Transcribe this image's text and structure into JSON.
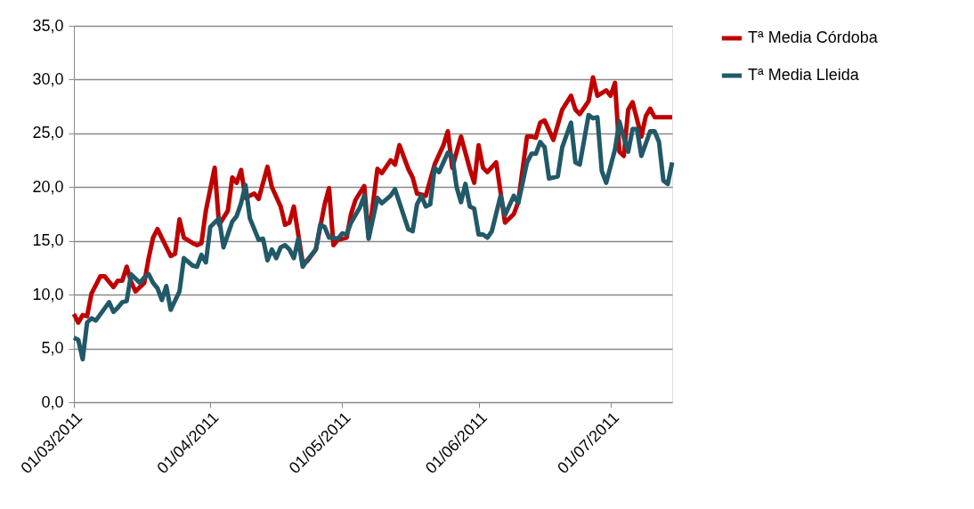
{
  "chart_data": {
    "type": "line",
    "xlim": [
      "2011-03-01",
      "2011-07-15"
    ],
    "xticks": [
      {
        "value": "2011-03-01",
        "label": "01/03/2011"
      },
      {
        "value": "2011-04-01",
        "label": "01/04/2011"
      },
      {
        "value": "2011-05-01",
        "label": "01/05/2011"
      },
      {
        "value": "2011-06-01",
        "label": "01/06/2011"
      },
      {
        "value": "2011-07-01",
        "label": "01/07/2011"
      }
    ],
    "ylim": [
      0,
      35
    ],
    "yticks": [
      {
        "value": 0,
        "label": "0,0"
      },
      {
        "value": 5,
        "label": "5,0"
      },
      {
        "value": 10,
        "label": "10,0"
      },
      {
        "value": 15,
        "label": "15,0"
      },
      {
        "value": 20,
        "label": "20,0"
      },
      {
        "value": 25,
        "label": "25,0"
      },
      {
        "value": 30,
        "label": "30,0"
      },
      {
        "value": 35,
        "label": "35,0"
      }
    ],
    "grid": "y",
    "legend": "right",
    "marker": "none",
    "line_style": "solid",
    "series": [
      {
        "name": "Tª Media Córdoba",
        "color": "#c00000",
        "x": [
          "2011-03-01",
          "2011-03-02",
          "2011-03-03",
          "2011-03-04",
          "2011-03-05",
          "2011-03-07",
          "2011-03-08",
          "2011-03-10",
          "2011-03-11",
          "2011-03-12",
          "2011-03-13",
          "2011-03-14",
          "2011-03-15",
          "2011-03-17",
          "2011-03-18",
          "2011-03-19",
          "2011-03-20",
          "2011-03-23",
          "2011-03-24",
          "2011-03-25",
          "2011-03-26",
          "2011-03-28",
          "2011-03-29",
          "2011-03-30",
          "2011-03-31",
          "2011-04-02",
          "2011-04-03",
          "2011-04-05",
          "2011-04-06",
          "2011-04-07",
          "2011-04-08",
          "2011-04-09",
          "2011-04-11",
          "2011-04-12",
          "2011-04-14",
          "2011-04-15",
          "2011-04-17",
          "2011-04-18",
          "2011-04-19",
          "2011-04-20",
          "2011-04-22",
          "2011-04-23",
          "2011-04-25",
          "2011-04-27",
          "2011-04-28",
          "2011-04-29",
          "2011-04-30",
          "2011-05-02",
          "2011-05-03",
          "2011-05-04",
          "2011-05-06",
          "2011-05-07",
          "2011-05-09",
          "2011-05-10",
          "2011-05-12",
          "2011-05-13",
          "2011-05-14",
          "2011-05-16",
          "2011-05-17",
          "2011-05-18",
          "2011-05-20",
          "2011-05-22",
          "2011-05-24",
          "2011-05-25",
          "2011-05-26",
          "2011-05-28",
          "2011-05-30",
          "2011-05-31",
          "2011-06-01",
          "2011-06-02",
          "2011-06-03",
          "2011-06-05",
          "2011-06-07",
          "2011-06-09",
          "2011-06-10",
          "2011-06-12",
          "2011-06-13",
          "2011-06-14",
          "2011-06-15",
          "2011-06-16",
          "2011-06-18",
          "2011-06-20",
          "2011-06-22",
          "2011-06-23",
          "2011-06-24",
          "2011-06-26",
          "2011-06-27",
          "2011-06-28",
          "2011-06-30",
          "2011-07-01",
          "2011-07-02",
          "2011-07-03",
          "2011-07-04",
          "2011-07-05",
          "2011-07-06",
          "2011-07-08",
          "2011-07-09",
          "2011-07-10",
          "2011-07-11",
          "2011-07-15"
        ],
        "values": [
          8.2,
          7.4,
          8.1,
          8.0,
          10.1,
          11.7,
          11.7,
          10.7,
          11.3,
          11.3,
          12.6,
          11.2,
          10.3,
          11.1,
          13.4,
          15.3,
          16.1,
          13.6,
          13.8,
          17.0,
          15.3,
          14.8,
          14.6,
          14.8,
          17.8,
          21.8,
          16.5,
          17.8,
          20.9,
          20.4,
          21.6,
          19.0,
          19.4,
          18.9,
          21.9,
          20.0,
          18.2,
          16.5,
          16.7,
          18.2,
          13.0,
          13.1,
          14.2,
          18.4,
          19.9,
          14.6,
          15.1,
          15.3,
          17.5,
          18.8,
          20.1,
          15.3,
          21.7,
          21.3,
          22.5,
          22.1,
          23.9,
          21.7,
          20.9,
          19.4,
          19.2,
          22.1,
          23.9,
          25.2,
          21.8,
          24.7,
          21.7,
          20.4,
          23.9,
          21.8,
          21.4,
          22.3,
          16.7,
          17.5,
          18.6,
          24.7,
          24.7,
          24.6,
          26.0,
          26.2,
          24.4,
          27.2,
          28.5,
          27.2,
          26.8,
          28.0,
          30.2,
          28.5,
          29.0,
          28.5,
          29.7,
          23.3,
          22.9,
          27.2,
          27.9,
          24.7,
          26.6,
          27.3,
          26.5,
          26.5
        ]
      },
      {
        "name": "Tª Media Lleida",
        "color": "#215968",
        "x": [
          "2011-03-01",
          "2011-03-02",
          "2011-03-03",
          "2011-03-04",
          "2011-03-05",
          "2011-03-06",
          "2011-03-09",
          "2011-03-10",
          "2011-03-11",
          "2011-03-12",
          "2011-03-13",
          "2011-03-14",
          "2011-03-16",
          "2011-03-17",
          "2011-03-18",
          "2011-03-19",
          "2011-03-20",
          "2011-03-21",
          "2011-03-22",
          "2011-03-23",
          "2011-03-25",
          "2011-03-26",
          "2011-03-28",
          "2011-03-29",
          "2011-03-30",
          "2011-03-31",
          "2011-04-01",
          "2011-04-03",
          "2011-04-04",
          "2011-04-06",
          "2011-04-07",
          "2011-04-08",
          "2011-04-09",
          "2011-04-10",
          "2011-04-12",
          "2011-04-13",
          "2011-04-14",
          "2011-04-15",
          "2011-04-16",
          "2011-04-17",
          "2011-04-18",
          "2011-04-19",
          "2011-04-20",
          "2011-04-21",
          "2011-04-22",
          "2011-04-23",
          "2011-04-25",
          "2011-04-26",
          "2011-04-27",
          "2011-04-28",
          "2011-04-29",
          "2011-04-30",
          "2011-05-01",
          "2011-05-02",
          "2011-05-03",
          "2011-05-05",
          "2011-05-06",
          "2011-05-07",
          "2011-05-09",
          "2011-05-10",
          "2011-05-12",
          "2011-05-13",
          "2011-05-16",
          "2011-05-17",
          "2011-05-18",
          "2011-05-19",
          "2011-05-20",
          "2011-05-21",
          "2011-05-22",
          "2011-05-23",
          "2011-05-25",
          "2011-05-26",
          "2011-05-27",
          "2011-05-28",
          "2011-05-29",
          "2011-05-30",
          "2011-05-31",
          "2011-06-01",
          "2011-06-02",
          "2011-06-03",
          "2011-06-04",
          "2011-06-06",
          "2011-06-07",
          "2011-06-09",
          "2011-06-10",
          "2011-06-12",
          "2011-06-13",
          "2011-06-14",
          "2011-06-15",
          "2011-06-16",
          "2011-06-17",
          "2011-06-19",
          "2011-06-20",
          "2011-06-22",
          "2011-06-23",
          "2011-06-24",
          "2011-06-26",
          "2011-06-27",
          "2011-06-28",
          "2011-06-29",
          "2011-06-30",
          "2011-07-02",
          "2011-07-03",
          "2011-07-04",
          "2011-07-05",
          "2011-07-06",
          "2011-07-07",
          "2011-07-08",
          "2011-07-10",
          "2011-07-11",
          "2011-07-12",
          "2011-07-13",
          "2011-07-14",
          "2011-07-15"
        ],
        "values": [
          6.0,
          5.8,
          4.0,
          7.4,
          7.8,
          7.6,
          9.3,
          8.4,
          8.8,
          9.3,
          9.4,
          11.9,
          11.1,
          11.6,
          11.9,
          11.1,
          10.6,
          9.5,
          10.8,
          8.6,
          10.3,
          13.4,
          12.7,
          12.6,
          13.7,
          13.0,
          16.3,
          17.1,
          14.4,
          16.8,
          17.3,
          18.5,
          20.2,
          17.1,
          15.1,
          15.2,
          13.2,
          14.2,
          13.4,
          14.4,
          14.6,
          14.2,
          13.4,
          15.2,
          12.6,
          13.2,
          14.2,
          16.5,
          16.3,
          15.3,
          15.3,
          15.2,
          15.7,
          15.6,
          16.7,
          18.1,
          19.2,
          15.2,
          19.0,
          18.5,
          19.2,
          19.8,
          16.1,
          15.9,
          18.4,
          19.2,
          18.2,
          18.4,
          21.8,
          21.4,
          23.2,
          22.9,
          20.0,
          18.6,
          20.3,
          18.2,
          18.0,
          15.6,
          15.6,
          15.3,
          15.9,
          19.2,
          17.4,
          19.2,
          18.5,
          22.3,
          23.1,
          23.1,
          24.2,
          23.7,
          20.8,
          21.0,
          23.7,
          26.0,
          22.3,
          22.1,
          26.7,
          26.4,
          26.5,
          21.5,
          20.4,
          23.5,
          26.1,
          24.6,
          23.3,
          25.4,
          25.4,
          22.9,
          25.2,
          25.2,
          24.2,
          20.6,
          20.3,
          22.3
        ]
      }
    ]
  }
}
